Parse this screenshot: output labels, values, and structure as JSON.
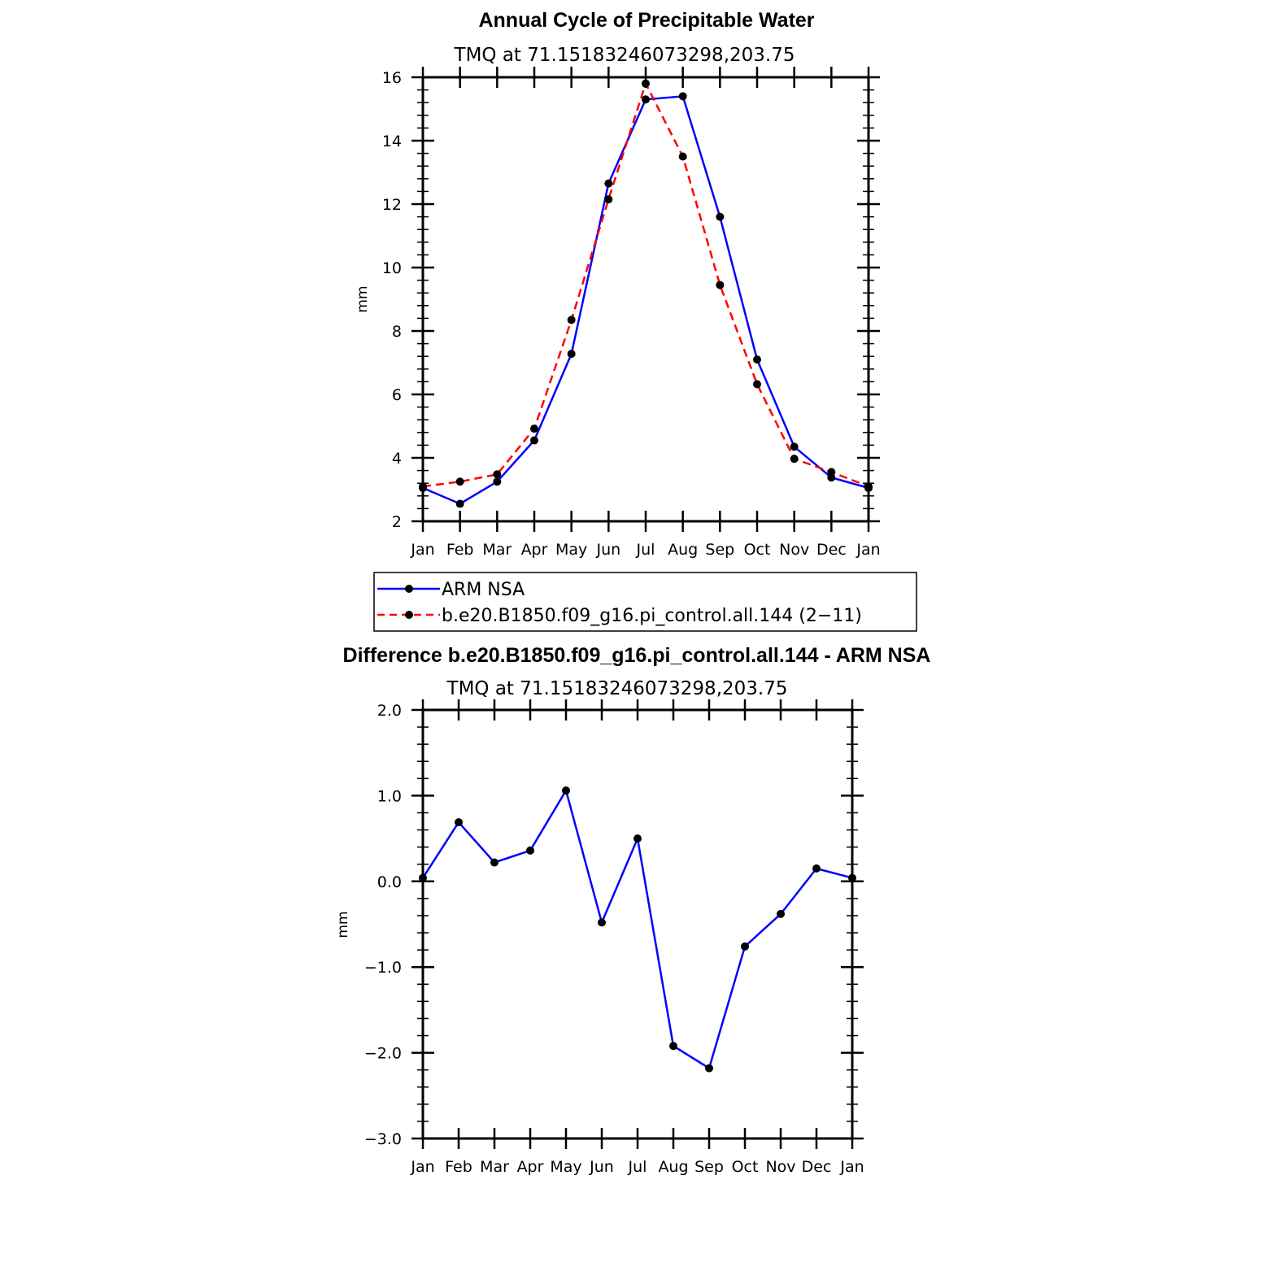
{
  "chart_data": [
    {
      "type": "line",
      "title": "Annual Cycle of Precipitable Water",
      "subtitle": "TMQ at 71.15183246073298,203.75",
      "ylabel": "mm",
      "xlabel": "",
      "categories": [
        "Jan",
        "Feb",
        "Mar",
        "Apr",
        "May",
        "Jun",
        "Jul",
        "Aug",
        "Sep",
        "Oct",
        "Nov",
        "Dec",
        "Jan"
      ],
      "ylim": [
        2,
        16
      ],
      "yticks": [
        "2",
        "4",
        "6",
        "8",
        "10",
        "12",
        "14",
        "16"
      ],
      "grid": false,
      "legend_position": "below",
      "series": [
        {
          "name": "ARM NSA",
          "color": "#0000ff",
          "dash": "solid",
          "values": [
            3.05,
            2.55,
            3.25,
            4.55,
            7.28,
            12.65,
            15.3,
            15.4,
            11.6,
            7.1,
            4.35,
            3.38,
            3.05
          ]
        },
        {
          "name": "b.e20.B1850.f09_g16.pi_control.all.144 (2−11)",
          "color": "#ff0000",
          "dash": "dashed",
          "values": [
            3.1,
            3.25,
            3.48,
            4.92,
            8.35,
            12.15,
            15.8,
            13.5,
            9.45,
            6.32,
            3.97,
            3.55,
            3.1
          ]
        }
      ]
    },
    {
      "type": "line",
      "title": "Difference b.e20.B1850.f09_g16.pi_control.all.144 - ARM NSA",
      "subtitle": "TMQ at 71.15183246073298,203.75",
      "ylabel": "mm",
      "xlabel": "",
      "categories": [
        "Jan",
        "Feb",
        "Mar",
        "Apr",
        "May",
        "Jun",
        "Jul",
        "Aug",
        "Sep",
        "Oct",
        "Nov",
        "Dec",
        "Jan"
      ],
      "ylim": [
        -3,
        2
      ],
      "yticks": [
        "2.0",
        "1.0",
        "0.0",
        "−1.0",
        "−2.0",
        "−3.0"
      ],
      "grid": false,
      "series": [
        {
          "color": "#0000ff",
          "dash": "solid",
          "values": [
            0.04,
            0.69,
            0.22,
            0.36,
            1.06,
            -0.48,
            0.5,
            -1.92,
            -2.18,
            -0.76,
            -0.38,
            0.15,
            0.04
          ]
        }
      ]
    }
  ]
}
